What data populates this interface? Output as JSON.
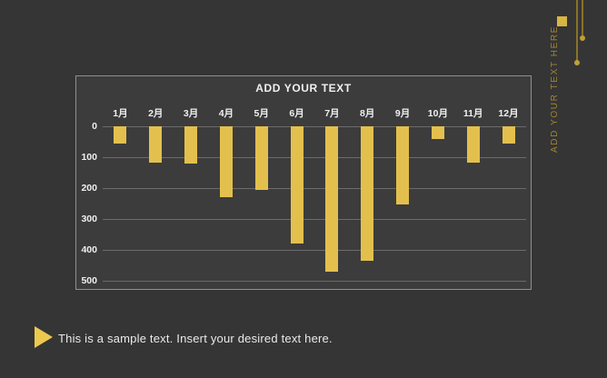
{
  "slide": {
    "background_color": "#353535"
  },
  "chart_data": {
    "type": "bar",
    "title": "ADD YOUR TEXT",
    "categories": [
      "1月",
      "2月",
      "3月",
      "4月",
      "5月",
      "6月",
      "7月",
      "8月",
      "9月",
      "10月",
      "11月",
      "12月"
    ],
    "values": [
      55,
      118,
      122,
      228,
      205,
      380,
      472,
      435,
      252,
      40,
      118,
      57
    ],
    "y_ticks": [
      0,
      100,
      200,
      300,
      400,
      500
    ],
    "ylim": [
      0,
      500
    ],
    "y_axis_reversed": true,
    "bars_hang_downward_from_zero": true,
    "xlabel": "",
    "ylabel": "",
    "grid": true,
    "legend": false,
    "bar_color": "#e3c04d",
    "gridline_color": "#6b6b6b",
    "label_color": "#f0f0f0",
    "plot_bg_color": "#3c3c3c",
    "border_color": "#8f8f8f"
  },
  "side_decoration": {
    "vertical_text": "ADD YOUR TEXT HERE",
    "text_color": "#a18433",
    "square_color": "#d9b542",
    "line_color": "#8a7228",
    "dot_color": "#bfa137"
  },
  "footer": {
    "caption": "This is a sample text. Insert your desired text here.",
    "bullet_color": "#ecc94e",
    "text_color": "#eaeaea"
  }
}
